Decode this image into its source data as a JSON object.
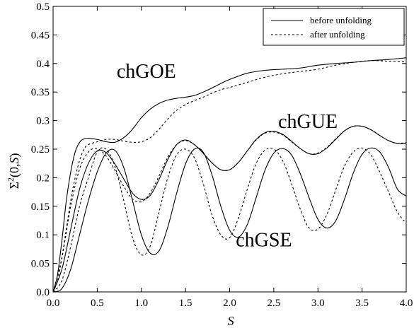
{
  "chart_data": {
    "type": "line",
    "title": "",
    "xlabel": "S",
    "ylabel_main": "Σ",
    "ylabel_sup": "2",
    "ylabel_args": "(0,",
    "ylabel_var": "S",
    "ylabel_close": ")",
    "xlim": [
      0.0,
      4.0
    ],
    "ylim": [
      0.0,
      0.5
    ],
    "grid": false,
    "legend_position": "top-right",
    "x_ticks": [
      "0.0",
      "0.5",
      "1.0",
      "1.5",
      "2.0",
      "2.5",
      "3.0",
      "3.5",
      "4.0"
    ],
    "y_ticks": [
      "0.0",
      "0.05",
      "0.1",
      "0.15",
      "0.2",
      "0.25",
      "0.3",
      "0.35",
      "0.4",
      "0.45",
      "0.5"
    ],
    "legend": [
      {
        "label": "before unfolding",
        "style": "solid"
      },
      {
        "label": "after unfolding",
        "style": "dashed"
      }
    ],
    "annotations": [
      {
        "text": "chGOE",
        "x": 0.72,
        "y": 0.375
      },
      {
        "text": "chGUE",
        "x": 2.55,
        "y": 0.287
      },
      {
        "text": "chGSE",
        "x": 2.07,
        "y": 0.08
      }
    ],
    "series": [
      {
        "ensemble": "chGOE",
        "style": "solid",
        "x": [
          0,
          0.05,
          0.1,
          0.15,
          0.2,
          0.25,
          0.3,
          0.35,
          0.4,
          0.5,
          0.6,
          0.7,
          0.8,
          0.9,
          1.0,
          1.1,
          1.2,
          1.3,
          1.4,
          1.5,
          1.6,
          1.7,
          1.8,
          1.9,
          2.0,
          2.2,
          2.4,
          2.6,
          2.8,
          3.0,
          3.2,
          3.4,
          3.6,
          3.8,
          4.0
        ],
        "y": [
          0,
          0.03,
          0.09,
          0.16,
          0.21,
          0.245,
          0.262,
          0.268,
          0.269,
          0.267,
          0.263,
          0.262,
          0.27,
          0.285,
          0.305,
          0.32,
          0.33,
          0.336,
          0.339,
          0.341,
          0.344,
          0.35,
          0.357,
          0.365,
          0.372,
          0.383,
          0.388,
          0.39,
          0.392,
          0.397,
          0.4,
          0.402,
          0.405,
          0.407,
          0.41
        ]
      },
      {
        "ensemble": "chGOE",
        "style": "dashed",
        "x": [
          0,
          0.05,
          0.1,
          0.15,
          0.2,
          0.25,
          0.3,
          0.35,
          0.4,
          0.5,
          0.6,
          0.7,
          0.8,
          0.9,
          1.0,
          1.1,
          1.2,
          1.3,
          1.4,
          1.5,
          1.6,
          1.7,
          1.8,
          1.9,
          2.0,
          2.2,
          2.4,
          2.6,
          2.8,
          3.0,
          3.2,
          3.4,
          3.6,
          3.8,
          4.0
        ],
        "y": [
          0,
          0.02,
          0.06,
          0.11,
          0.16,
          0.2,
          0.23,
          0.25,
          0.258,
          0.263,
          0.267,
          0.267,
          0.264,
          0.262,
          0.263,
          0.27,
          0.285,
          0.303,
          0.318,
          0.328,
          0.335,
          0.341,
          0.348,
          0.354,
          0.358,
          0.367,
          0.376,
          0.382,
          0.386,
          0.39,
          0.397,
          0.402,
          0.405,
          0.404,
          0.403
        ]
      },
      {
        "ensemble": "chGUE",
        "style": "solid",
        "x": [
          0,
          0.1,
          0.2,
          0.3,
          0.4,
          0.5,
          0.6,
          0.7,
          0.8,
          0.9,
          1.0,
          1.1,
          1.2,
          1.3,
          1.4,
          1.5,
          1.6,
          1.7,
          1.8,
          1.9,
          2.0,
          2.1,
          2.2,
          2.3,
          2.4,
          2.5,
          2.6,
          2.7,
          2.8,
          2.9,
          3.0,
          3.1,
          3.2,
          3.3,
          3.4,
          3.5,
          3.6,
          3.7,
          3.8,
          3.9,
          4.0
        ],
        "y": [
          0,
          0.04,
          0.11,
          0.18,
          0.225,
          0.247,
          0.244,
          0.224,
          0.198,
          0.173,
          0.162,
          0.169,
          0.197,
          0.232,
          0.258,
          0.266,
          0.258,
          0.243,
          0.226,
          0.214,
          0.214,
          0.227,
          0.247,
          0.267,
          0.279,
          0.281,
          0.276,
          0.264,
          0.251,
          0.242,
          0.242,
          0.252,
          0.267,
          0.282,
          0.29,
          0.29,
          0.284,
          0.274,
          0.265,
          0.26,
          0.26
        ]
      },
      {
        "ensemble": "chGUE",
        "style": "dashed",
        "x": [
          0,
          0.1,
          0.2,
          0.3,
          0.4,
          0.5,
          0.6,
          0.7,
          0.8,
          0.9,
          1.0,
          1.1,
          1.2,
          1.3,
          1.4,
          1.5,
          1.6,
          1.7,
          1.8,
          1.9,
          2.0,
          2.1,
          2.2,
          2.3,
          2.4,
          2.5,
          2.6,
          2.7,
          2.8,
          2.9,
          3.0,
          3.1,
          3.2,
          3.3,
          3.4,
          3.5,
          3.6,
          3.7,
          3.8,
          3.9,
          4.0
        ],
        "y": [
          0,
          0.06,
          0.15,
          0.215,
          0.245,
          0.251,
          0.238,
          0.213,
          0.185,
          0.163,
          0.158,
          0.173,
          0.203,
          0.236,
          0.258,
          0.265,
          0.258,
          0.243,
          0.226,
          0.214,
          0.214,
          0.227,
          0.247,
          0.266,
          0.278,
          0.28,
          0.275,
          0.263,
          0.251,
          0.242,
          0.243,
          0.253,
          0.268,
          0.282,
          0.29,
          0.29,
          0.284,
          0.274,
          0.265,
          0.26,
          0.262
        ]
      },
      {
        "ensemble": "chGSE",
        "style": "solid",
        "x": [
          0,
          0.1,
          0.2,
          0.3,
          0.4,
          0.5,
          0.6,
          0.7,
          0.8,
          0.9,
          1.0,
          1.1,
          1.2,
          1.3,
          1.4,
          1.5,
          1.6,
          1.7,
          1.8,
          1.9,
          2.0,
          2.1,
          2.2,
          2.3,
          2.4,
          2.5,
          2.6,
          2.7,
          2.8,
          2.9,
          3.0,
          3.1,
          3.2,
          3.3,
          3.4,
          3.5,
          3.6,
          3.7,
          3.8,
          3.9,
          4.0
        ],
        "y": [
          0,
          0.006,
          0.04,
          0.1,
          0.16,
          0.21,
          0.243,
          0.248,
          0.218,
          0.16,
          0.1,
          0.068,
          0.072,
          0.114,
          0.173,
          0.224,
          0.25,
          0.245,
          0.205,
          0.15,
          0.108,
          0.096,
          0.118,
          0.165,
          0.213,
          0.243,
          0.251,
          0.24,
          0.207,
          0.165,
          0.127,
          0.112,
          0.124,
          0.162,
          0.208,
          0.241,
          0.252,
          0.245,
          0.218,
          0.18,
          0.168
        ]
      },
      {
        "ensemble": "chGSE",
        "style": "dashed",
        "x": [
          0,
          0.1,
          0.2,
          0.3,
          0.4,
          0.5,
          0.6,
          0.7,
          0.8,
          0.9,
          1.0,
          1.1,
          1.2,
          1.3,
          1.4,
          1.5,
          1.6,
          1.7,
          1.8,
          1.9,
          2.0,
          2.1,
          2.2,
          2.3,
          2.4,
          2.5,
          2.6,
          2.7,
          2.8,
          2.9,
          3.0,
          3.1,
          3.2,
          3.3,
          3.4,
          3.5,
          3.6,
          3.7,
          3.8,
          3.9,
          4.0
        ],
        "y": [
          0,
          0.02,
          0.08,
          0.15,
          0.2,
          0.245,
          0.25,
          0.22,
          0.16,
          0.095,
          0.065,
          0.08,
          0.14,
          0.2,
          0.24,
          0.25,
          0.235,
          0.19,
          0.135,
          0.1,
          0.095,
          0.13,
          0.18,
          0.225,
          0.248,
          0.25,
          0.23,
          0.19,
          0.145,
          0.112,
          0.11,
          0.135,
          0.178,
          0.22,
          0.245,
          0.252,
          0.24,
          0.21,
          0.175,
          0.14,
          0.12
        ]
      }
    ]
  }
}
